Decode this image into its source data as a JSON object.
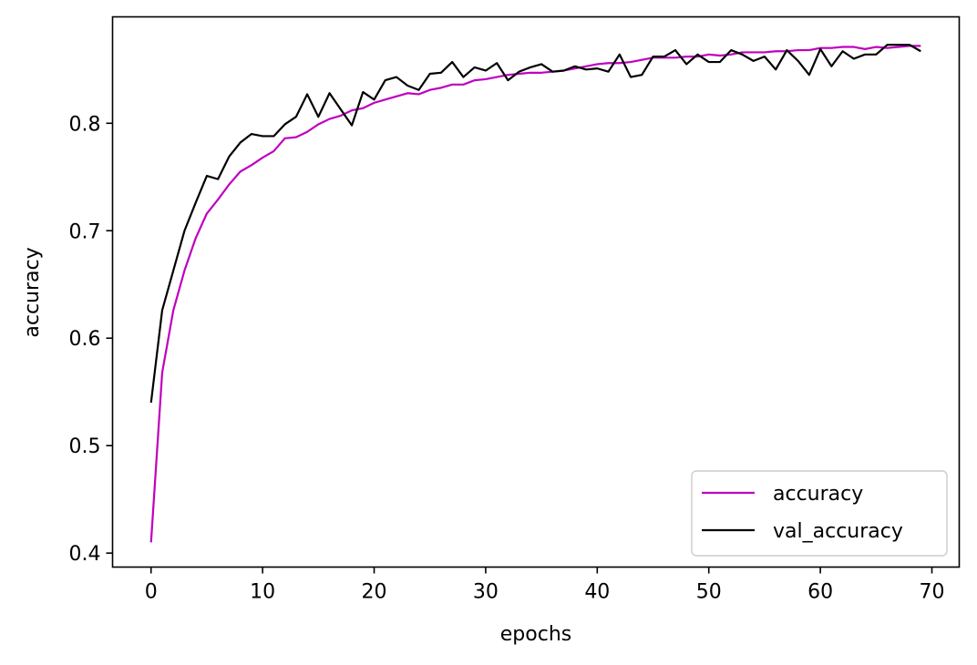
{
  "chart_data": {
    "type": "line",
    "xlabel": "epochs",
    "ylabel": "accuracy",
    "xlim": [
      -3.45,
      72.45
    ],
    "ylim": [
      0.387,
      0.899
    ],
    "xticks": [
      0,
      10,
      20,
      30,
      40,
      50,
      60,
      70
    ],
    "yticks": [
      0.4,
      0.5,
      0.6,
      0.7,
      0.8
    ],
    "ytick_labels": [
      "0.4",
      "0.5",
      "0.6",
      "0.7",
      "0.8"
    ],
    "grid": false,
    "legend_position": "lower-right",
    "x": [
      0,
      1,
      2,
      3,
      4,
      5,
      6,
      7,
      8,
      9,
      10,
      11,
      12,
      13,
      14,
      15,
      16,
      17,
      18,
      19,
      20,
      21,
      22,
      23,
      24,
      25,
      26,
      27,
      28,
      29,
      30,
      31,
      32,
      33,
      34,
      35,
      36,
      37,
      38,
      39,
      40,
      41,
      42,
      43,
      44,
      45,
      46,
      47,
      48,
      49,
      50,
      51,
      52,
      53,
      54,
      55,
      56,
      57,
      58,
      59,
      60,
      61,
      62,
      63,
      64,
      65,
      66,
      67,
      68,
      69
    ],
    "series": [
      {
        "name": "accuracy",
        "color": "#bf00bf",
        "values": [
          0.41,
          0.568,
          0.626,
          0.663,
          0.693,
          0.716,
          0.729,
          0.743,
          0.755,
          0.761,
          0.768,
          0.774,
          0.786,
          0.787,
          0.792,
          0.799,
          0.804,
          0.807,
          0.812,
          0.814,
          0.819,
          0.822,
          0.825,
          0.828,
          0.827,
          0.831,
          0.833,
          0.836,
          0.836,
          0.84,
          0.841,
          0.843,
          0.845,
          0.846,
          0.847,
          0.847,
          0.848,
          0.849,
          0.851,
          0.853,
          0.855,
          0.856,
          0.856,
          0.857,
          0.859,
          0.861,
          0.861,
          0.861,
          0.862,
          0.862,
          0.864,
          0.863,
          0.864,
          0.866,
          0.866,
          0.866,
          0.867,
          0.867,
          0.868,
          0.868,
          0.87,
          0.87,
          0.871,
          0.871,
          0.869,
          0.871,
          0.87,
          0.871,
          0.872,
          0.872
        ]
      },
      {
        "name": "val_accuracy",
        "color": "#000000",
        "values": [
          0.54,
          0.626,
          0.663,
          0.7,
          0.726,
          0.751,
          0.748,
          0.769,
          0.782,
          0.79,
          0.788,
          0.788,
          0.799,
          0.806,
          0.827,
          0.806,
          0.828,
          0.813,
          0.798,
          0.829,
          0.822,
          0.84,
          0.843,
          0.835,
          0.831,
          0.846,
          0.847,
          0.857,
          0.843,
          0.852,
          0.849,
          0.856,
          0.84,
          0.848,
          0.852,
          0.855,
          0.848,
          0.849,
          0.853,
          0.85,
          0.851,
          0.848,
          0.864,
          0.843,
          0.845,
          0.862,
          0.862,
          0.868,
          0.855,
          0.864,
          0.857,
          0.857,
          0.868,
          0.864,
          0.858,
          0.862,
          0.85,
          0.868,
          0.858,
          0.845,
          0.869,
          0.853,
          0.867,
          0.86,
          0.864,
          0.864,
          0.873,
          0.873,
          0.873,
          0.867
        ]
      }
    ]
  }
}
